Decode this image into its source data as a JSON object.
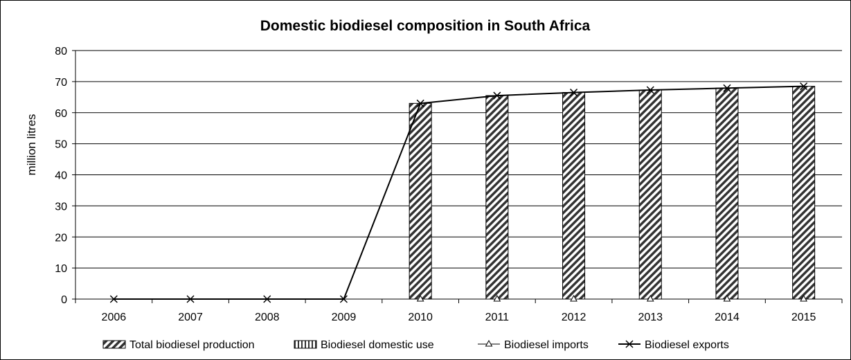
{
  "chart_data": {
    "type": "bar",
    "title": "Domestic biodiesel composition in South Africa",
    "xlabel": "",
    "ylabel": "million litres",
    "ylim": [
      0,
      80
    ],
    "yticks": [
      0,
      10,
      20,
      30,
      40,
      50,
      60,
      70,
      80
    ],
    "grid": true,
    "legend": "bottom",
    "categories": [
      "2006",
      "2007",
      "2008",
      "2009",
      "2010",
      "2011",
      "2012",
      "2013",
      "2014",
      "2015"
    ],
    "series": [
      {
        "name": "Total biodiesel production",
        "kind": "bar",
        "pattern": "diagonal-hatch",
        "values": [
          0,
          0,
          0,
          0,
          63,
          65.5,
          66.5,
          67.3,
          67.9,
          68.5
        ]
      },
      {
        "name": "Biodiesel domestic use",
        "kind": "bar",
        "pattern": "vertical-hatch",
        "values": [
          0,
          0,
          0,
          0,
          63,
          65.5,
          66.5,
          67.3,
          67.9,
          68.5
        ]
      },
      {
        "name": "Biodiesel imports",
        "kind": "line",
        "marker": "triangle",
        "values": [
          0,
          0,
          0,
          0,
          0,
          0,
          0,
          0,
          0,
          0
        ]
      },
      {
        "name": "Biodiesel exports",
        "kind": "line",
        "marker": "x",
        "values": [
          0,
          0,
          0,
          0,
          63,
          65.5,
          66.5,
          67.3,
          67.9,
          68.5
        ]
      }
    ]
  }
}
